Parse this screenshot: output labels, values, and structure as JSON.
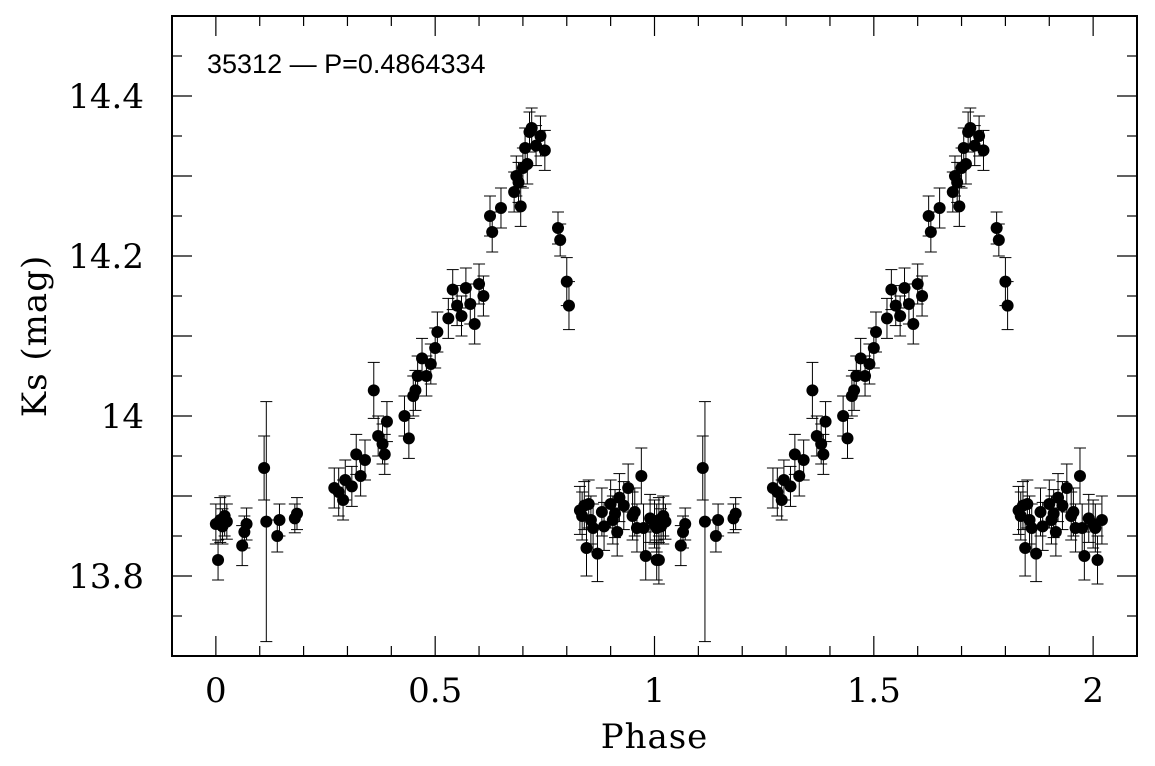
{
  "chart_data": {
    "type": "scatter",
    "annotation": "35312 — P=0.4864334",
    "xlabel": "Phase",
    "ylabel": "Ks (mag)",
    "xlim": [
      -0.1,
      2.1
    ],
    "ylim": [
      13.7,
      14.5
    ],
    "y_inverted": false,
    "x_ticks": [
      0,
      0.5,
      1,
      1.5,
      2
    ],
    "x_tick_labels": [
      "0",
      "0.5",
      "1",
      "1.5",
      "2"
    ],
    "y_ticks": [
      13.8,
      14.0,
      14.2,
      14.4
    ],
    "y_tick_labels": [
      "13.8",
      "14",
      "14.2",
      "14.4"
    ],
    "grid": false,
    "error_bars": true,
    "marker_color": "#000000",
    "series": [
      {
        "x": [
          0.0,
          0.005,
          0.01,
          0.015,
          0.02,
          0.025,
          0.06,
          0.065,
          0.07,
          0.11,
          0.115,
          0.14,
          0.145,
          0.18,
          0.185,
          0.27,
          0.28,
          0.29,
          0.295,
          0.31,
          0.32,
          0.33,
          0.34,
          0.36,
          0.37,
          0.38,
          0.385,
          0.39,
          0.43,
          0.44,
          0.45,
          0.455,
          0.46,
          0.47,
          0.48,
          0.49,
          0.5,
          0.505,
          0.53,
          0.54,
          0.55,
          0.56,
          0.57,
          0.58,
          0.59,
          0.6,
          0.61,
          0.625,
          0.63,
          0.65,
          0.68,
          0.685,
          0.69,
          0.695,
          0.7,
          0.705,
          0.71,
          0.715,
          0.72,
          0.73,
          0.74,
          0.75,
          0.78,
          0.785,
          0.8,
          0.805,
          0.83,
          0.835,
          0.84,
          0.845,
          0.85,
          0.855,
          0.86,
          0.87,
          0.88,
          0.885,
          0.9,
          0.905,
          0.91,
          0.915,
          0.92,
          0.93,
          0.94,
          0.95,
          0.955,
          0.96,
          0.97,
          0.975,
          0.98,
          0.99,
          1.0,
          1.005,
          1.01,
          1.02
        ],
        "y": [
          13.865,
          13.82,
          13.87,
          13.862,
          13.875,
          13.868,
          13.838,
          13.855,
          13.865,
          13.935,
          13.868,
          13.85,
          13.87,
          13.872,
          13.878,
          13.91,
          13.905,
          13.895,
          13.92,
          13.912,
          13.952,
          13.925,
          13.945,
          14.032,
          13.975,
          13.965,
          13.952,
          13.993,
          14.0,
          13.972,
          14.025,
          14.032,
          14.05,
          14.072,
          14.05,
          14.065,
          14.085,
          14.105,
          14.122,
          14.158,
          14.138,
          14.125,
          14.16,
          14.14,
          14.115,
          14.165,
          14.15,
          14.25,
          14.23,
          14.26,
          14.28,
          14.3,
          14.292,
          14.262,
          14.31,
          14.335,
          14.315,
          14.355,
          14.36,
          14.338,
          14.35,
          14.332,
          14.235,
          14.22,
          14.168,
          14.138,
          13.882,
          13.875,
          13.888,
          13.835,
          13.89,
          13.87,
          13.86,
          13.828,
          13.88,
          13.862,
          13.89,
          13.87,
          13.878,
          13.855,
          13.898,
          13.888,
          13.91,
          13.875,
          13.88,
          13.86,
          13.925,
          13.86,
          13.825,
          13.872,
          13.865,
          13.86,
          13.82,
          13.87
        ],
        "err": [
          0.025,
          0.025,
          0.028,
          0.022,
          0.025,
          0.022,
          0.025,
          0.02,
          0.02,
          0.04,
          0.15,
          0.02,
          0.02,
          0.018,
          0.02,
          0.025,
          0.03,
          0.025,
          0.025,
          0.025,
          0.025,
          0.025,
          0.025,
          0.035,
          0.025,
          0.025,
          0.025,
          0.025,
          0.025,
          0.025,
          0.025,
          0.025,
          0.025,
          0.025,
          0.025,
          0.025,
          0.025,
          0.025,
          0.025,
          0.025,
          0.025,
          0.025,
          0.025,
          0.025,
          0.025,
          0.025,
          0.025,
          0.025,
          0.025,
          0.025,
          0.025,
          0.025,
          0.025,
          0.025,
          0.025,
          0.025,
          0.025,
          0.025,
          0.025,
          0.025,
          0.025,
          0.025,
          0.02,
          0.02,
          0.03,
          0.03,
          0.03,
          0.03,
          0.03,
          0.035,
          0.03,
          0.03,
          0.03,
          0.035,
          0.03,
          0.03,
          0.03,
          0.03,
          0.03,
          0.03,
          0.03,
          0.03,
          0.03,
          0.03,
          0.03,
          0.03,
          0.035,
          0.03,
          0.03,
          0.03,
          0.03,
          0.03,
          0.03,
          0.03
        ]
      }
    ]
  }
}
